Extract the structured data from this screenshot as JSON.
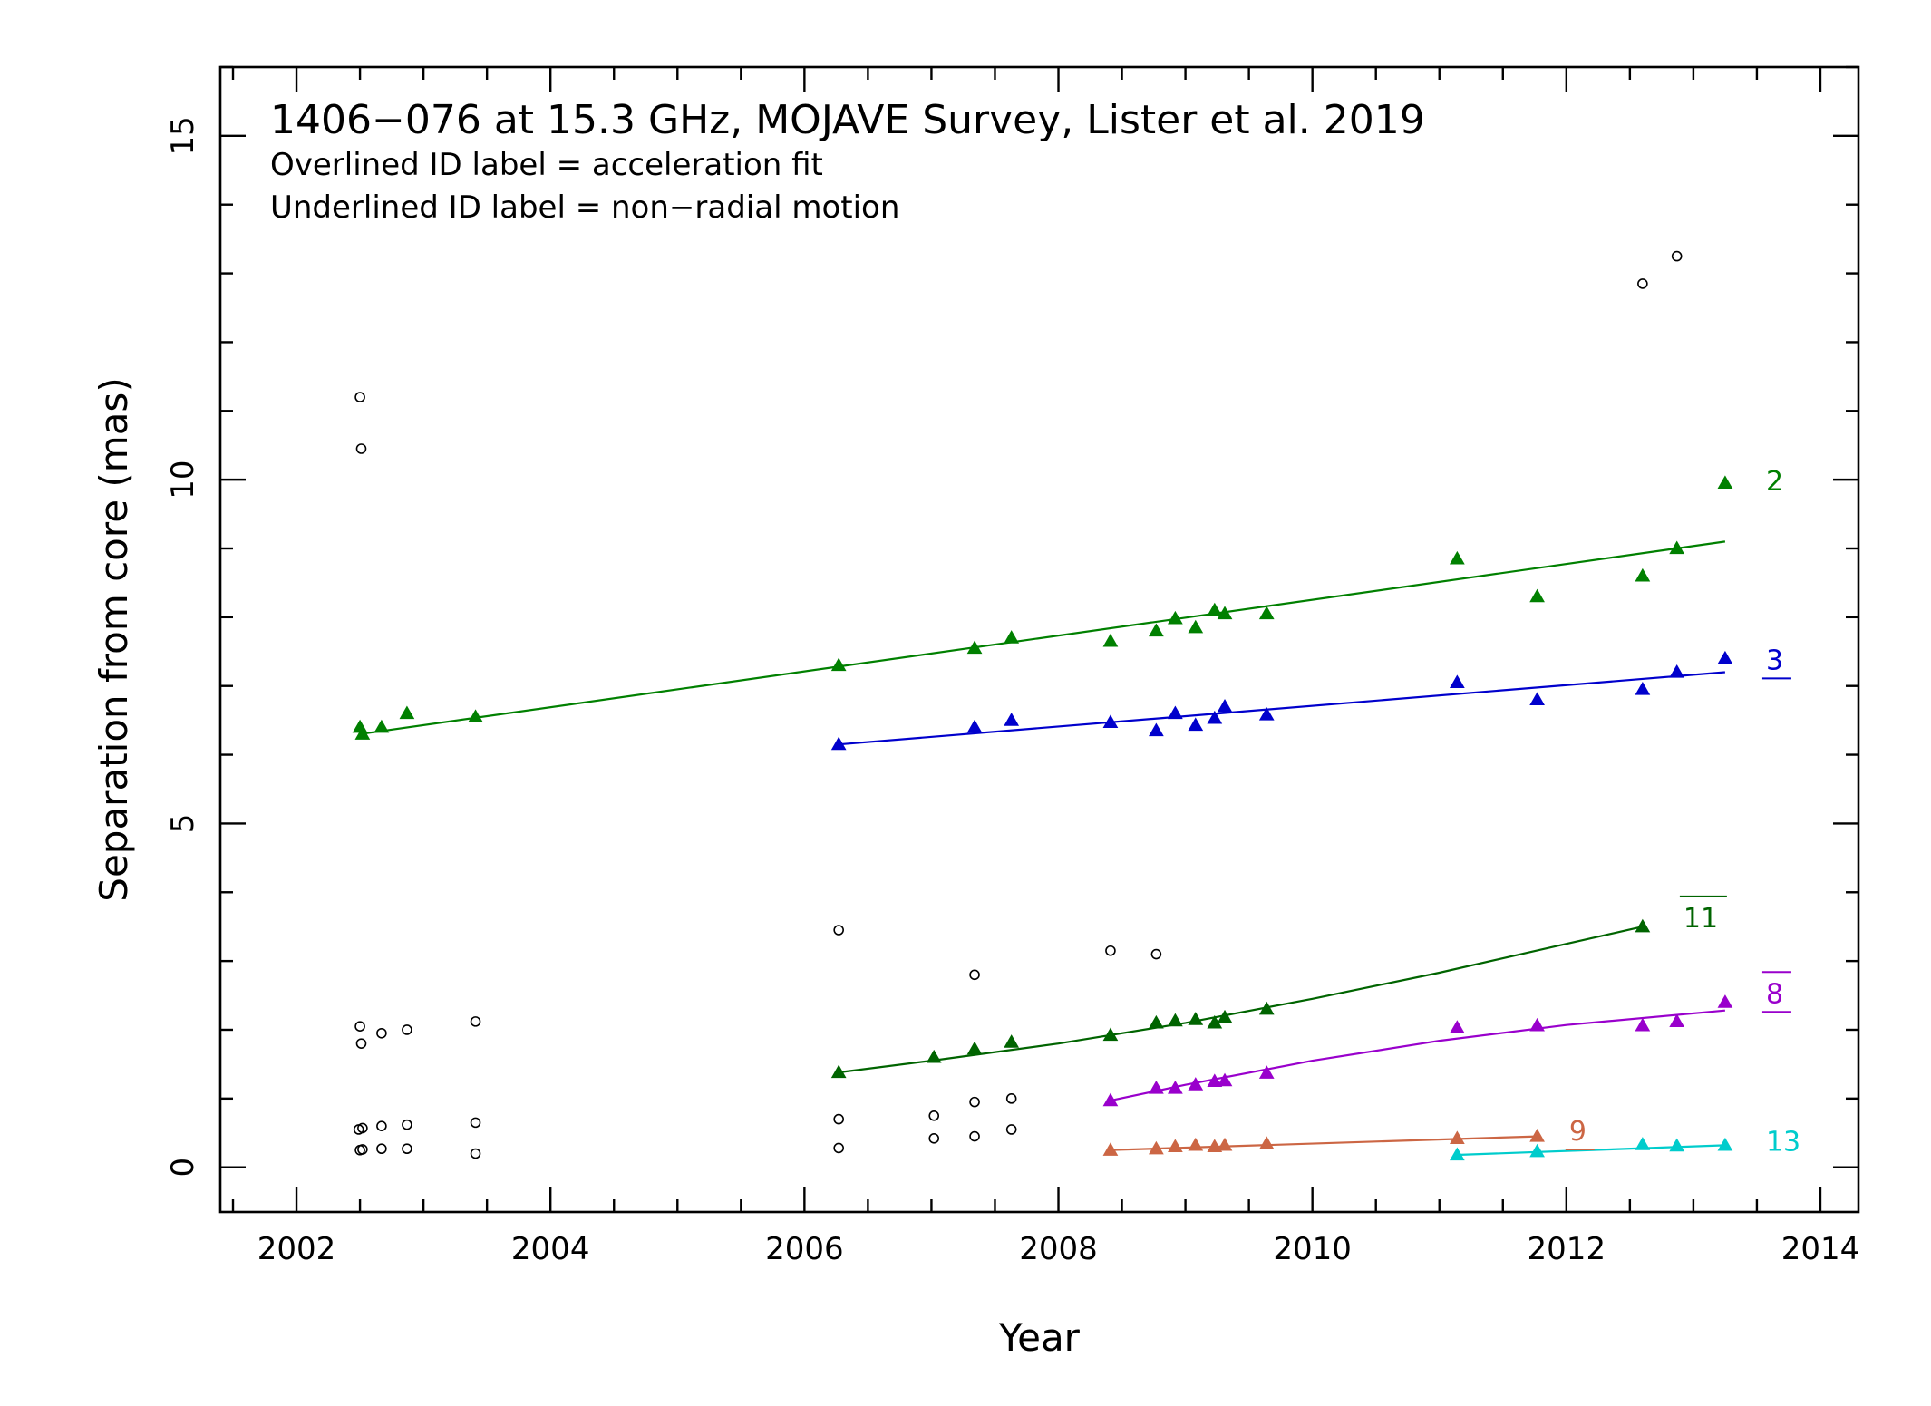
{
  "chart_data": {
    "type": "scatter",
    "title": "1406−076 at 15.3 GHz, MOJAVE Survey, Lister et al. 2019",
    "subtitle_lines": [
      "Overlined ID label = acceleration fit",
      "Underlined ID label = non−radial motion"
    ],
    "xlabel": "Year",
    "ylabel": "Separation from core (mas)",
    "xlim": [
      2001.4,
      2014.3
    ],
    "ylim": [
      -0.65,
      16.0
    ],
    "xticks": [
      2002,
      2004,
      2006,
      2008,
      2010,
      2012,
      2014
    ],
    "yticks": [
      0,
      5,
      10,
      15
    ],
    "x_minor_step": 0.5,
    "y_minor_step": 1,
    "grid": false,
    "unidentified_points": [
      [
        2002.5,
        11.2
      ],
      [
        2002.51,
        10.45
      ],
      [
        2002.5,
        2.05
      ],
      [
        2002.51,
        1.8
      ],
      [
        2002.49,
        0.55
      ],
      [
        2002.52,
        0.57
      ],
      [
        2002.5,
        0.25
      ],
      [
        2002.52,
        0.26
      ],
      [
        2002.67,
        1.95
      ],
      [
        2002.67,
        0.6
      ],
      [
        2002.67,
        0.27
      ],
      [
        2002.87,
        2.0
      ],
      [
        2002.87,
        0.62
      ],
      [
        2002.87,
        0.27
      ],
      [
        2003.41,
        2.12
      ],
      [
        2003.41,
        0.65
      ],
      [
        2003.41,
        0.2
      ],
      [
        2006.27,
        3.45
      ],
      [
        2006.27,
        0.7
      ],
      [
        2006.27,
        0.28
      ],
      [
        2007.02,
        0.75
      ],
      [
        2007.02,
        0.42
      ],
      [
        2007.34,
        2.8
      ],
      [
        2007.34,
        0.95
      ],
      [
        2007.34,
        0.45
      ],
      [
        2007.63,
        1.0
      ],
      [
        2007.63,
        0.55
      ],
      [
        2008.41,
        3.15
      ],
      [
        2008.77,
        3.1
      ],
      [
        2012.6,
        12.85
      ],
      [
        2012.87,
        13.25
      ]
    ],
    "series": [
      {
        "name": "2",
        "label_style": "plain",
        "color": "#008000",
        "points": [
          [
            2002.5,
            6.4
          ],
          [
            2002.52,
            6.3
          ],
          [
            2002.67,
            6.4
          ],
          [
            2002.87,
            6.6
          ],
          [
            2003.41,
            6.55
          ],
          [
            2006.27,
            7.3
          ],
          [
            2007.34,
            7.55
          ],
          [
            2007.63,
            7.7
          ],
          [
            2008.41,
            7.65
          ],
          [
            2008.77,
            7.8
          ],
          [
            2008.92,
            7.98
          ],
          [
            2009.08,
            7.85
          ],
          [
            2009.23,
            8.1
          ],
          [
            2009.31,
            8.05
          ],
          [
            2009.64,
            8.05
          ],
          [
            2011.14,
            8.85
          ],
          [
            2011.77,
            8.3
          ],
          [
            2012.6,
            8.6
          ],
          [
            2012.87,
            9.0
          ],
          [
            2013.25,
            9.95
          ]
        ],
        "fit": [
          [
            2002.5,
            6.3
          ],
          [
            2013.25,
            9.1
          ]
        ],
        "label_at": [
          2013.5,
          10.0
        ]
      },
      {
        "name": "3",
        "label_style": "underline",
        "color": "#0000cc",
        "points": [
          [
            2006.27,
            6.15
          ],
          [
            2007.34,
            6.4
          ],
          [
            2007.63,
            6.5
          ],
          [
            2008.41,
            6.47
          ],
          [
            2008.77,
            6.35
          ],
          [
            2008.92,
            6.6
          ],
          [
            2009.08,
            6.43
          ],
          [
            2009.23,
            6.53
          ],
          [
            2009.31,
            6.7
          ],
          [
            2009.64,
            6.58
          ],
          [
            2011.14,
            7.05
          ],
          [
            2011.77,
            6.8
          ],
          [
            2012.6,
            6.95
          ],
          [
            2012.87,
            7.2
          ],
          [
            2013.25,
            7.4
          ]
        ],
        "fit": [
          [
            2006.27,
            6.15
          ],
          [
            2013.25,
            7.2
          ]
        ],
        "label_at": [
          2013.5,
          7.4
        ]
      },
      {
        "name": "11",
        "label_style": "overline",
        "color": "#006400",
        "points": [
          [
            2006.27,
            1.38
          ],
          [
            2007.02,
            1.6
          ],
          [
            2007.34,
            1.72
          ],
          [
            2007.63,
            1.82
          ],
          [
            2008.41,
            1.92
          ],
          [
            2008.77,
            2.1
          ],
          [
            2008.92,
            2.13
          ],
          [
            2009.08,
            2.15
          ],
          [
            2009.23,
            2.1
          ],
          [
            2009.31,
            2.18
          ],
          [
            2009.64,
            2.3
          ],
          [
            2012.6,
            3.5
          ]
        ],
        "fit": [
          [
            2006.27,
            1.38
          ],
          [
            2007.0,
            1.55
          ],
          [
            2008.0,
            1.8
          ],
          [
            2009.0,
            2.1
          ],
          [
            2010.0,
            2.45
          ],
          [
            2011.0,
            2.83
          ],
          [
            2012.0,
            3.25
          ],
          [
            2012.6,
            3.5
          ]
        ],
        "label_at": [
          2012.85,
          3.65
        ]
      },
      {
        "name": "8",
        "label_style": "overline-underline",
        "color": "#9900cc",
        "points": [
          [
            2008.41,
            0.97
          ],
          [
            2008.77,
            1.15
          ],
          [
            2008.92,
            1.15
          ],
          [
            2009.08,
            1.2
          ],
          [
            2009.23,
            1.25
          ],
          [
            2009.31,
            1.26
          ],
          [
            2009.64,
            1.37
          ],
          [
            2011.14,
            2.03
          ],
          [
            2011.77,
            2.06
          ],
          [
            2012.6,
            2.06
          ],
          [
            2012.87,
            2.12
          ],
          [
            2013.25,
            2.4
          ]
        ],
        "fit": [
          [
            2008.41,
            0.97
          ],
          [
            2009.0,
            1.2
          ],
          [
            2010.0,
            1.55
          ],
          [
            2011.0,
            1.84
          ],
          [
            2012.0,
            2.07
          ],
          [
            2013.25,
            2.28
          ]
        ],
        "label_at": [
          2013.5,
          2.55
        ]
      },
      {
        "name": "9",
        "label_style": "underline",
        "color": "#cc6644",
        "points": [
          [
            2008.41,
            0.25
          ],
          [
            2008.77,
            0.27
          ],
          [
            2008.92,
            0.3
          ],
          [
            2009.08,
            0.32
          ],
          [
            2009.23,
            0.3
          ],
          [
            2009.31,
            0.32
          ],
          [
            2009.64,
            0.34
          ],
          [
            2011.14,
            0.42
          ],
          [
            2011.77,
            0.45
          ]
        ],
        "fit": [
          [
            2008.41,
            0.25
          ],
          [
            2011.77,
            0.45
          ]
        ],
        "label_at": [
          2011.95,
          0.55
        ]
      },
      {
        "name": "13",
        "label_style": "plain",
        "color": "#00cccc",
        "points": [
          [
            2011.14,
            0.18
          ],
          [
            2011.77,
            0.23
          ],
          [
            2012.6,
            0.33
          ],
          [
            2012.87,
            0.31
          ],
          [
            2013.25,
            0.32
          ]
        ],
        "fit": [
          [
            2011.14,
            0.18
          ],
          [
            2013.25,
            0.32
          ]
        ],
        "label_at": [
          2013.5,
          0.4
        ]
      }
    ]
  }
}
